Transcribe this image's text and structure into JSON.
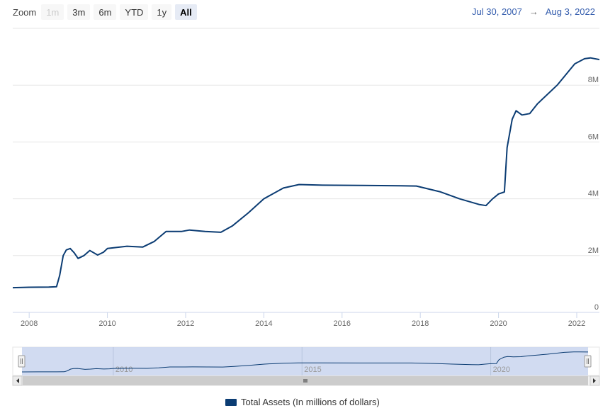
{
  "zoom": {
    "label": "Zoom",
    "buttons": [
      {
        "label": "1m",
        "state": "disabled"
      },
      {
        "label": "3m",
        "state": "normal"
      },
      {
        "label": "6m",
        "state": "normal"
      },
      {
        "label": "YTD",
        "state": "normal"
      },
      {
        "label": "1y",
        "state": "normal"
      },
      {
        "label": "All",
        "state": "active"
      }
    ]
  },
  "range": {
    "from": "Jul 30, 2007",
    "separator": "→",
    "to": "Aug 3, 2022"
  },
  "colors": {
    "series": "#0b3c73",
    "grid": "#e6e6e6",
    "navigator_mask": "#c9d5ee"
  },
  "chart_data": {
    "type": "line",
    "xlim": [
      2007.58,
      2022.58
    ],
    "ylim": [
      0,
      10000000
    ],
    "x_ticks": [
      {
        "value": 2008,
        "label": "2008"
      },
      {
        "value": 2010,
        "label": "2010"
      },
      {
        "value": 2012,
        "label": "2012"
      },
      {
        "value": 2014,
        "label": "2014"
      },
      {
        "value": 2016,
        "label": "2016"
      },
      {
        "value": 2018,
        "label": "2018"
      },
      {
        "value": 2020,
        "label": "2020"
      },
      {
        "value": 2022,
        "label": "2022"
      }
    ],
    "y_ticks": [
      {
        "value": 0,
        "label": "0"
      },
      {
        "value": 2000000,
        "label": "2M"
      },
      {
        "value": 4000000,
        "label": "4M"
      },
      {
        "value": 6000000,
        "label": "6M"
      },
      {
        "value": 8000000,
        "label": "8M"
      }
    ],
    "grid": true,
    "legend_position": "bottom-center",
    "series": [
      {
        "name": "Total Assets (In millions of dollars)",
        "points": [
          [
            2007.58,
            870000
          ],
          [
            2008.0,
            885000
          ],
          [
            2008.5,
            890000
          ],
          [
            2008.7,
            905000
          ],
          [
            2008.78,
            1300000
          ],
          [
            2008.87,
            2000000
          ],
          [
            2008.95,
            2200000
          ],
          [
            2009.05,
            2250000
          ],
          [
            2009.15,
            2100000
          ],
          [
            2009.25,
            1900000
          ],
          [
            2009.4,
            2000000
          ],
          [
            2009.55,
            2180000
          ],
          [
            2009.75,
            2020000
          ],
          [
            2009.9,
            2120000
          ],
          [
            2010.0,
            2250000
          ],
          [
            2010.5,
            2330000
          ],
          [
            2010.9,
            2300000
          ],
          [
            2011.2,
            2500000
          ],
          [
            2011.5,
            2850000
          ],
          [
            2011.9,
            2850000
          ],
          [
            2012.1,
            2900000
          ],
          [
            2012.5,
            2850000
          ],
          [
            2012.9,
            2820000
          ],
          [
            2013.2,
            3050000
          ],
          [
            2013.6,
            3500000
          ],
          [
            2014.0,
            4000000
          ],
          [
            2014.5,
            4380000
          ],
          [
            2014.9,
            4500000
          ],
          [
            2015.5,
            4480000
          ],
          [
            2016.5,
            4470000
          ],
          [
            2017.5,
            4460000
          ],
          [
            2017.9,
            4450000
          ],
          [
            2018.5,
            4250000
          ],
          [
            2019.0,
            4000000
          ],
          [
            2019.5,
            3800000
          ],
          [
            2019.68,
            3760000
          ],
          [
            2019.85,
            4000000
          ],
          [
            2020.0,
            4170000
          ],
          [
            2020.15,
            4240000
          ],
          [
            2020.22,
            5800000
          ],
          [
            2020.35,
            6800000
          ],
          [
            2020.45,
            7100000
          ],
          [
            2020.6,
            6950000
          ],
          [
            2020.8,
            7000000
          ],
          [
            2021.0,
            7350000
          ],
          [
            2021.5,
            8000000
          ],
          [
            2021.95,
            8750000
          ],
          [
            2022.2,
            8930000
          ],
          [
            2022.35,
            8960000
          ],
          [
            2022.58,
            8900000
          ]
        ]
      }
    ]
  },
  "navigator": {
    "x_labels": [
      {
        "value": 2010,
        "label": "2010"
      },
      {
        "value": 2015,
        "label": "2015"
      },
      {
        "value": 2020,
        "label": "2020"
      }
    ]
  }
}
